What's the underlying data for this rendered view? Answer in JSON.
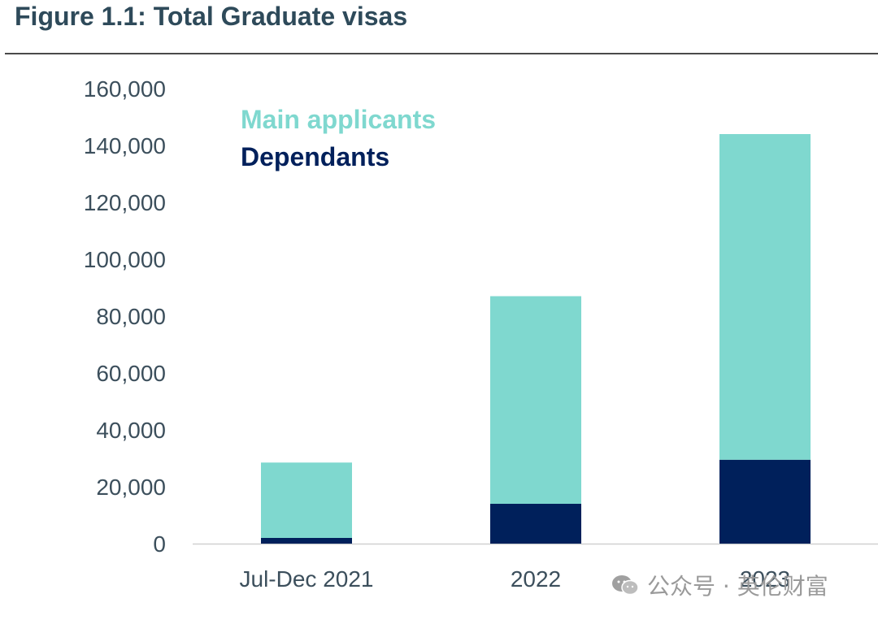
{
  "title": "Figure 1.1: Total Graduate visas",
  "colors": {
    "main": "#7fd8cf",
    "dependants": "#00205b",
    "axis_text": "#3c4f5c"
  },
  "chart_data": {
    "type": "bar",
    "stacked": true,
    "categories": [
      "Jul-Dec 2021",
      "2022",
      "2023"
    ],
    "series": [
      {
        "name": "Dependants",
        "values": [
          2000,
          14000,
          29500
        ]
      },
      {
        "name": "Main applicants",
        "values": [
          26500,
          73000,
          114500
        ]
      }
    ],
    "ylim": [
      0,
      160000
    ],
    "yticks": [
      "0",
      "20,000",
      "40,000",
      "60,000",
      "80,000",
      "100,000",
      "120,000",
      "140,000",
      "160,000"
    ],
    "grid": false,
    "legend_position": "top-left"
  },
  "watermark": {
    "text": "公众号 · 英伦财富",
    "icon": "wechat-icon"
  }
}
